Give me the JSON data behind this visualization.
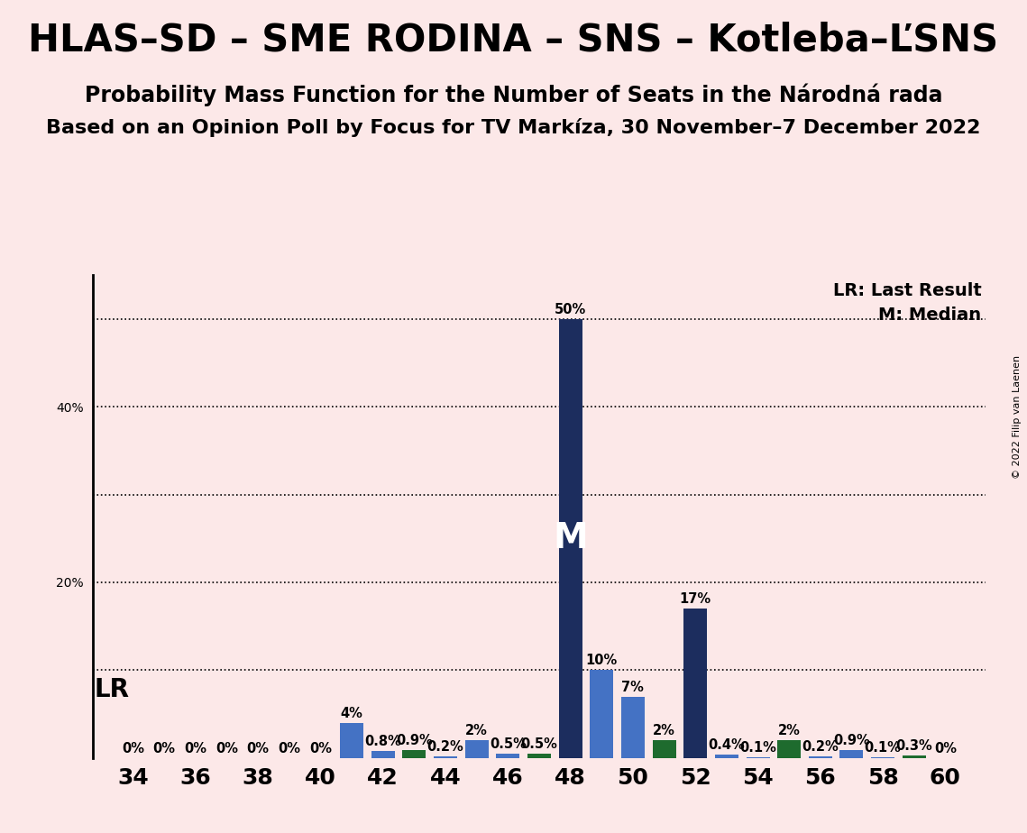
{
  "title": "HLAS–SD – SME RODINA – SNS – Kotleba–ĽSNS",
  "subtitle1": "Probability Mass Function for the Number of Seats in the Národná rada",
  "subtitle2": "Based on an Opinion Poll by Focus for TV Markíza, 30 November–7 December 2022",
  "copyright": "© 2022 Filip van Laenen",
  "background_color": "#fce8e8",
  "plot_bg_color": "#fce8e8",
  "lr_label": "LR",
  "median_label": "M",
  "legend_lr": "LR: Last Result",
  "legend_m": "M: Median",
  "xlabel_min": 34,
  "xlabel_max": 60,
  "xlabel_step": 2,
  "ylim": [
    0,
    55
  ],
  "yticks": [
    20,
    40
  ],
  "ytick_labels": [
    "20%",
    "40%"
  ],
  "hlines": [
    10,
    20,
    30,
    40,
    50
  ],
  "color_dark_navy": "#1c2d5e",
  "color_medium_blue": "#4472c4",
  "color_dark_green": "#1e6b2e",
  "median_seat": 48,
  "bars": [
    {
      "seat": 34,
      "value": 0.0,
      "color": "dark_navy"
    },
    {
      "seat": 35,
      "value": 0.0,
      "color": "dark_navy"
    },
    {
      "seat": 36,
      "value": 0.0,
      "color": "dark_navy"
    },
    {
      "seat": 37,
      "value": 0.0,
      "color": "dark_navy"
    },
    {
      "seat": 38,
      "value": 0.0,
      "color": "dark_navy"
    },
    {
      "seat": 39,
      "value": 0.0,
      "color": "dark_navy"
    },
    {
      "seat": 40,
      "value": 0.0,
      "color": "dark_navy"
    },
    {
      "seat": 41,
      "value": 4.0,
      "color": "medium_blue"
    },
    {
      "seat": 42,
      "value": 0.8,
      "color": "medium_blue"
    },
    {
      "seat": 43,
      "value": 0.9,
      "color": "dark_green"
    },
    {
      "seat": 44,
      "value": 0.2,
      "color": "medium_blue"
    },
    {
      "seat": 45,
      "value": 2.0,
      "color": "medium_blue"
    },
    {
      "seat": 46,
      "value": 0.5,
      "color": "medium_blue"
    },
    {
      "seat": 47,
      "value": 0.5,
      "color": "dark_green"
    },
    {
      "seat": 48,
      "value": 50.0,
      "color": "dark_navy"
    },
    {
      "seat": 49,
      "value": 10.0,
      "color": "medium_blue"
    },
    {
      "seat": 50,
      "value": 7.0,
      "color": "medium_blue"
    },
    {
      "seat": 51,
      "value": 2.0,
      "color": "dark_green"
    },
    {
      "seat": 52,
      "value": 17.0,
      "color": "dark_navy"
    },
    {
      "seat": 53,
      "value": 0.4,
      "color": "medium_blue"
    },
    {
      "seat": 54,
      "value": 0.1,
      "color": "medium_blue"
    },
    {
      "seat": 55,
      "value": 2.0,
      "color": "dark_green"
    },
    {
      "seat": 56,
      "value": 0.2,
      "color": "medium_blue"
    },
    {
      "seat": 57,
      "value": 0.9,
      "color": "medium_blue"
    },
    {
      "seat": 58,
      "value": 0.1,
      "color": "medium_blue"
    },
    {
      "seat": 59,
      "value": 0.3,
      "color": "dark_green"
    },
    {
      "seat": 60,
      "value": 0.0,
      "color": "dark_navy"
    }
  ],
  "bar_labels": {
    "34": "0%",
    "35": "0%",
    "36": "0%",
    "37": "0%",
    "38": "0%",
    "39": "0%",
    "40": "0%",
    "41": "4%",
    "42": "0.8%",
    "43": "0.9%",
    "44": "0.2%",
    "45": "2%",
    "46": "0.5%",
    "47": "0.5%",
    "48": "50%",
    "49": "10%",
    "50": "7%",
    "51": "2%",
    "52": "17%",
    "53": "0.4%",
    "54": "0.1%",
    "55": "2%",
    "56": "0.2%",
    "57": "0.9%",
    "58": "0.1%",
    "59": "0.3%",
    "60": "0%"
  },
  "title_fontsize": 30,
  "subtitle1_fontsize": 17,
  "subtitle2_fontsize": 16,
  "bar_label_fontsize": 10.5
}
